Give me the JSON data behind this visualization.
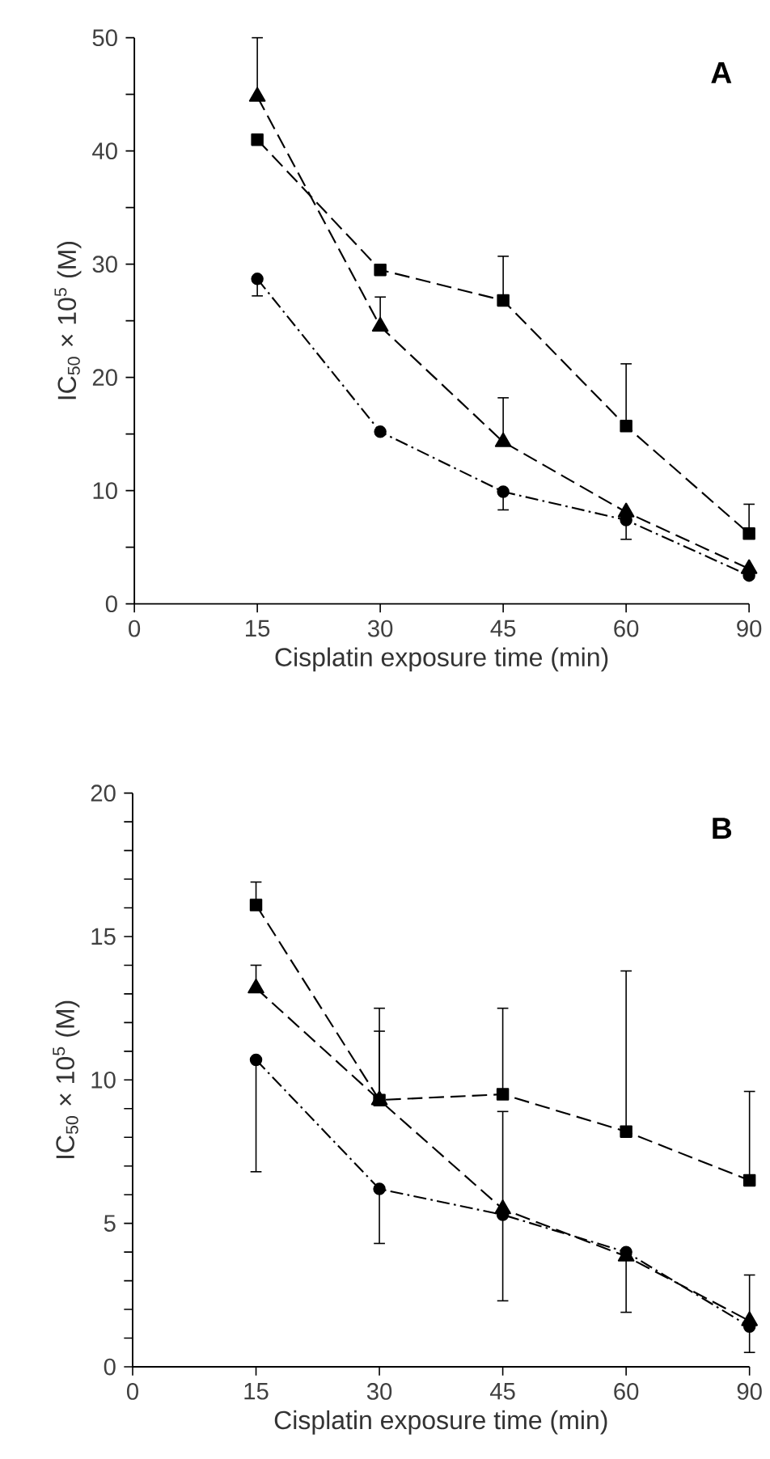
{
  "chart_data": [
    {
      "type": "line",
      "title": "A",
      "xlabel": "Cisplatin exposure time (min)",
      "ylabel": "IC$_{50}$ × 10$^{5}$ (M)",
      "categories": [
        "0",
        "15",
        "30",
        "45",
        "60",
        "90"
      ],
      "ylim": [
        0,
        50
      ],
      "yticks": [
        0,
        {
          "value": 5,
          "label": null
        },
        10,
        {
          "value": 15,
          "label": null
        },
        20,
        {
          "value": 25,
          "label": null
        },
        30,
        {
          "value": 35,
          "label": null
        },
        40,
        {
          "value": 45,
          "label": null
        },
        50
      ],
      "grid": false,
      "series": [
        {
          "color": "#000000",
          "marker": "square",
          "line_style": "dashed",
          "values": [
            null,
            41,
            29.5,
            26.8,
            15.7,
            6.2
          ],
          "errors": [
            null,
            null,
            null,
            [
              26.8,
              30.7
            ],
            [
              15.7,
              21.2
            ],
            [
              6.2,
              8.8
            ]
          ]
        },
        {
          "color": "#000000",
          "marker": "triangle",
          "line_style": "dashed",
          "values": [
            null,
            44.8,
            24.5,
            14.3,
            8.1,
            3.1
          ],
          "errors": [
            null,
            [
              44.8,
              50
            ],
            [
              24.5,
              27.1
            ],
            [
              14.3,
              18.2
            ],
            null,
            null
          ]
        },
        {
          "color": "#000000",
          "marker": "circle",
          "line_style": "dashdot",
          "values": [
            null,
            28.7,
            15.2,
            9.9,
            7.4,
            2.5
          ],
          "errors": [
            null,
            [
              27.2,
              28.7
            ],
            null,
            [
              8.3,
              9.9
            ],
            [
              5.7,
              7.4
            ],
            null
          ]
        }
      ]
    },
    {
      "type": "line",
      "title": "B",
      "xlabel": "Cisplatin exposure time (min)",
      "ylabel": "IC$_{50}$ × 10$^{5}$ (M)",
      "categories": [
        "0",
        "15",
        "30",
        "45",
        "60",
        "90"
      ],
      "ylim": [
        0,
        20
      ],
      "yticks": [
        0,
        {
          "value": 1,
          "label": null
        },
        {
          "value": 2,
          "label": null
        },
        {
          "value": 3,
          "label": null
        },
        {
          "value": 4,
          "label": null
        },
        5,
        {
          "value": 6,
          "label": null
        },
        {
          "value": 7,
          "label": null
        },
        {
          "value": 8,
          "label": null
        },
        {
          "value": 9,
          "label": null
        },
        10,
        {
          "value": 11,
          "label": null
        },
        {
          "value": 12,
          "label": null
        },
        {
          "value": 13,
          "label": null
        },
        {
          "value": 14,
          "label": null
        },
        15,
        {
          "value": 16,
          "label": null
        },
        {
          "value": 17,
          "label": null
        },
        {
          "value": 18,
          "label": null
        },
        {
          "value": 19,
          "label": null
        },
        20
      ],
      "grid": false,
      "series": [
        {
          "color": "#000000",
          "marker": "square",
          "line_style": "dashed",
          "values": [
            null,
            16.1,
            9.3,
            9.5,
            8.2,
            6.5
          ],
          "errors": [
            null,
            [
              16.1,
              16.9
            ],
            [
              9.3,
              12.5
            ],
            [
              9.5,
              12.5
            ],
            [
              8.2,
              13.8
            ],
            [
              6.5,
              9.6
            ]
          ]
        },
        {
          "color": "#000000",
          "marker": "triangle",
          "line_style": "dashed",
          "values": [
            null,
            13.2,
            9.3,
            5.5,
            3.85,
            1.6
          ],
          "errors": [
            null,
            [
              13.2,
              14.0
            ],
            [
              9.3,
              11.7
            ],
            [
              5.5,
              8.9
            ],
            null,
            [
              1.6,
              3.2
            ]
          ]
        },
        {
          "color": "#000000",
          "marker": "circle",
          "line_style": "dashdot",
          "values": [
            null,
            10.7,
            6.2,
            5.3,
            4.0,
            1.4
          ],
          "errors": [
            null,
            [
              6.8,
              10.7
            ],
            [
              4.3,
              6.2
            ],
            [
              2.3,
              5.3
            ],
            [
              1.9,
              4.0
            ],
            [
              0.5,
              1.4
            ]
          ]
        }
      ]
    }
  ]
}
